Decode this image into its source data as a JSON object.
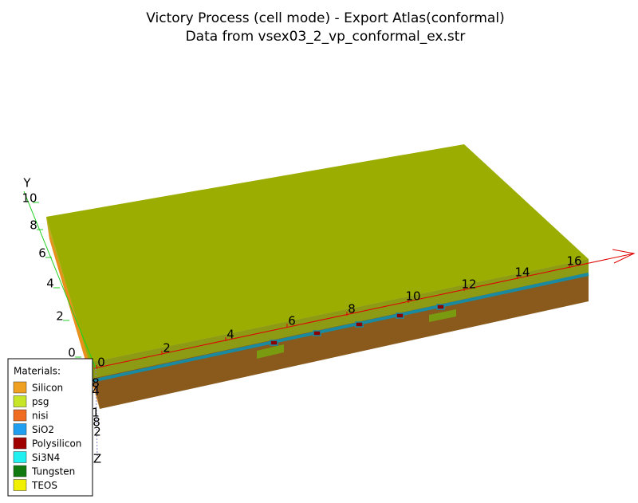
{
  "title": "Victory Process (cell mode) - Export Atlas(conformal)",
  "subtitle": "Data from vsex03_2_vp_conformal_ex.str",
  "axes": {
    "x": {
      "ticks": [
        "0",
        "2",
        "4",
        "6",
        "8",
        "10",
        "12",
        "14",
        "16"
      ]
    },
    "y": {
      "label": "Y",
      "ticks": [
        "0",
        "2",
        "4",
        "6",
        "8",
        "10"
      ]
    },
    "z": {
      "label": "Z",
      "ticks": [
        "8",
        "4",
        "1",
        "8",
        "2"
      ]
    }
  },
  "legend": {
    "title": "Materials:",
    "items": [
      {
        "label": "Silicon",
        "color": "#f0a020"
      },
      {
        "label": "psg",
        "color": "#c8e628"
      },
      {
        "label": "nisi",
        "color": "#f06c20"
      },
      {
        "label": "SiO2",
        "color": "#209ff0"
      },
      {
        "label": "Polysilicon",
        "color": "#a00000"
      },
      {
        "label": "Si3N4",
        "color": "#20f0f0"
      },
      {
        "label": "Tungsten",
        "color": "#107a10"
      },
      {
        "label": "TEOS",
        "color": "#f0f000"
      }
    ]
  }
}
